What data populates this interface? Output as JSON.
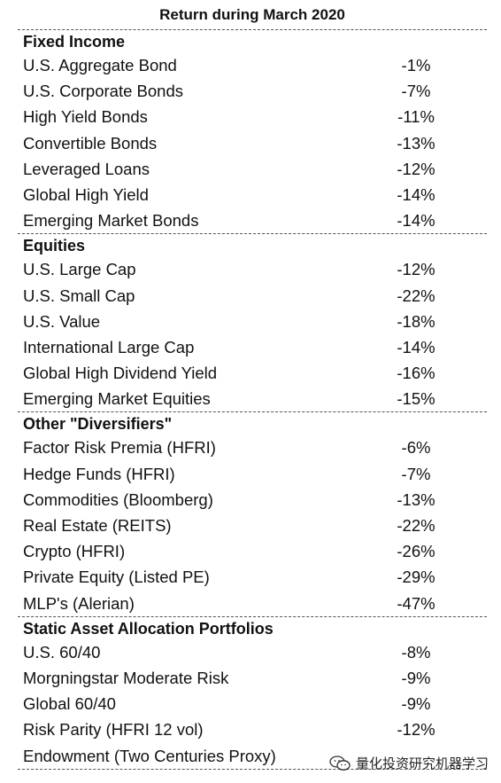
{
  "title": "Return during March 2020",
  "sections": [
    {
      "name": "Fixed Income",
      "rows": [
        {
          "label": "U.S. Aggregate Bond",
          "value": "-1%"
        },
        {
          "label": "U.S. Corporate Bonds",
          "value": "-7%"
        },
        {
          "label": "High Yield Bonds",
          "value": "-11%"
        },
        {
          "label": "Convertible Bonds",
          "value": "-13%"
        },
        {
          "label": "Leveraged Loans",
          "value": "-12%"
        },
        {
          "label": "Global High Yield",
          "value": "-14%"
        },
        {
          "label": "Emerging Market Bonds",
          "value": "-14%"
        }
      ]
    },
    {
      "name": "Equities",
      "rows": [
        {
          "label": "U.S. Large Cap",
          "value": "-12%"
        },
        {
          "label": "U.S. Small Cap",
          "value": "-22%"
        },
        {
          "label": "U.S. Value",
          "value": "-18%"
        },
        {
          "label": "International Large Cap",
          "value": "-14%"
        },
        {
          "label": "Global High Dividend Yield",
          "value": "-16%"
        },
        {
          "label": "Emerging Market Equities",
          "value": "-15%"
        }
      ]
    },
    {
      "name": "Other \"Diversifiers\"",
      "rows": [
        {
          "label": "Factor Risk Premia (HFRI)",
          "value": "-6%"
        },
        {
          "label": "Hedge Funds (HFRI)",
          "value": "-7%"
        },
        {
          "label": "Commodities (Bloomberg)",
          "value": "-13%"
        },
        {
          "label": "Real Estate (REITS)",
          "value": "-22%"
        },
        {
          "label": "Crypto (HFRI)",
          "value": "-26%"
        },
        {
          "label": "Private Equity (Listed PE)",
          "value": "-29%"
        },
        {
          "label": "MLP's (Alerian)",
          "value": "-47%"
        }
      ]
    },
    {
      "name": "Static Asset Allocation Portfolios",
      "rows": [
        {
          "label": "U.S. 60/40",
          "value": "-8%"
        },
        {
          "label": "Morgningstar Moderate Risk",
          "value": "-9%"
        },
        {
          "label": "Global 60/40",
          "value": "-9%"
        },
        {
          "label": "Risk Parity (HFRI 12 vol)",
          "value": "-12%"
        },
        {
          "label": "Endowment (Two Centuries Proxy)",
          "value": ""
        }
      ]
    }
  ],
  "watermark": {
    "text": "量化投资研究机器学习",
    "icon": "wechat-icon"
  }
}
